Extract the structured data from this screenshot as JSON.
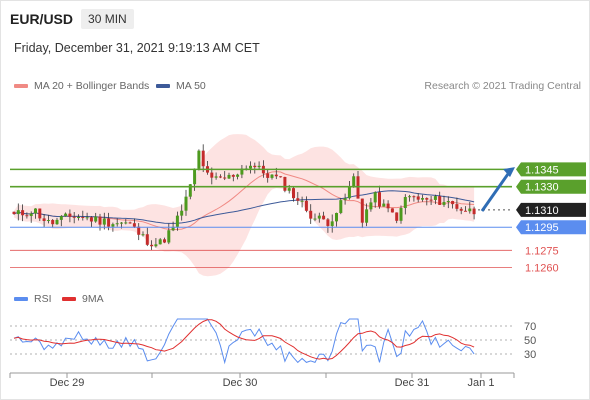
{
  "header": {
    "pair": "EUR/USD",
    "timeframe": "30 MIN",
    "datetime": "Friday, December 31, 2021 9:19:13 AM CET"
  },
  "legend": {
    "ma20_label": "MA 20 + Bollinger Bands",
    "ma50_label": "MA 50",
    "rsi_label": "RSI",
    "ma9_label": "9MA",
    "credit": "Research © 2021 Trading Central"
  },
  "colors": {
    "ma20": "#f08a84",
    "bollinger_fill": "#fde3e2",
    "ma50": "#3d5a99",
    "bull": "#4d9a1e",
    "bear": "#c42b2b",
    "resistance": "#5aa02c",
    "support": "#5b8def",
    "support_red": "#e05353",
    "rsi": "#5b8def",
    "rsi_ma": "#e03030",
    "arrow": "#2f6db5"
  },
  "chart_data": [
    {
      "type": "candlestick",
      "title": "EUR/USD",
      "timeframe": "30 MIN",
      "x_ticks": [
        "Dec 29",
        "Dec 30",
        "Dec 31",
        "Jan 1"
      ],
      "current_price": 1.131,
      "ylim": [
        1.1245,
        1.1405
      ],
      "levels": [
        {
          "value": 1.1345,
          "label": "1.1345",
          "kind": "resistance"
        },
        {
          "value": 1.133,
          "label": "1.1330",
          "kind": "resistance"
        },
        {
          "value": 1.131,
          "label": "1.1310",
          "kind": "current"
        },
        {
          "value": 1.1295,
          "label": "1.1295",
          "kind": "support"
        },
        {
          "value": 1.1275,
          "label": "1.1275",
          "kind": "support-minor"
        },
        {
          "value": 1.126,
          "label": "1.1260",
          "kind": "support-minor"
        }
      ],
      "series": [
        {
          "name": "MA 20 + Bollinger Bands"
        },
        {
          "name": "MA 50"
        }
      ],
      "key_closes": [
        {
          "x": "Dec 29",
          "close": 1.131
        },
        {
          "x": "Dec 29 late",
          "close": 1.1282
        },
        {
          "x": "Dec 30 high",
          "close": 1.1366
        },
        {
          "x": "Dec 30",
          "close": 1.1345
        },
        {
          "x": "Dec 30 late",
          "close": 1.13
        },
        {
          "x": "Dec 31",
          "close": 1.132
        },
        {
          "x": "Dec 31 now",
          "close": 1.131
        }
      ]
    },
    {
      "type": "line",
      "title": "RSI",
      "y_ticks": [
        70,
        50,
        30
      ],
      "ylim": [
        10,
        90
      ],
      "series": [
        {
          "name": "RSI"
        },
        {
          "name": "9MA"
        }
      ]
    }
  ]
}
